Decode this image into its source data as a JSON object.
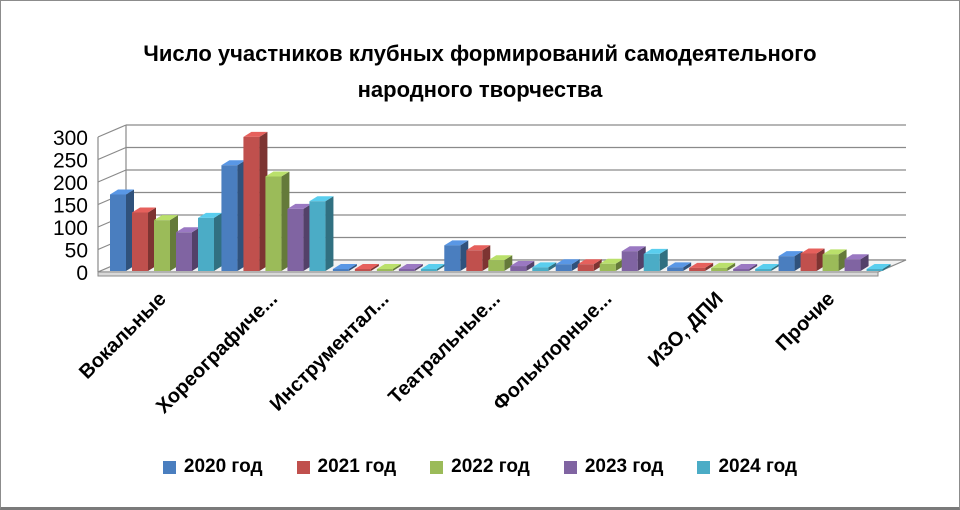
{
  "chart_data": {
    "type": "bar",
    "title_lines": [
      "Число участников клубных формирований самодеятельного",
      "народного творчества"
    ],
    "categories": [
      "Вокальные",
      "Хореографиче...",
      "Инструментал...",
      "Театральные...",
      "Фольклорные...",
      "ИЗО, ДПИ",
      "Прочие"
    ],
    "series": [
      {
        "name": "2020 год",
        "color": "#4a7ebf",
        "values": [
          170,
          235,
          1,
          57,
          15,
          8,
          33
        ]
      },
      {
        "name": "2021 год",
        "color": "#c0504d",
        "values": [
          130,
          298,
          1,
          46,
          15,
          7,
          39
        ]
      },
      {
        "name": "2022 год",
        "color": "#9bbb59",
        "values": [
          113,
          210,
          1,
          24,
          16,
          7,
          37
        ]
      },
      {
        "name": "2023 год",
        "color": "#8064a2",
        "values": [
          86,
          138,
          1,
          11,
          44,
          3,
          26
        ]
      },
      {
        "name": "2024 год",
        "color": "#4bacc6",
        "values": [
          118,
          155,
          1,
          8,
          38,
          1,
          2
        ]
      }
    ],
    "yticks": [
      "300",
      "250",
      "200",
      "150",
      "100",
      "50",
      "0"
    ],
    "ylim": [
      0,
      300
    ],
    "grid": true,
    "legend": "bottom",
    "style": "3d-clustered-column"
  }
}
